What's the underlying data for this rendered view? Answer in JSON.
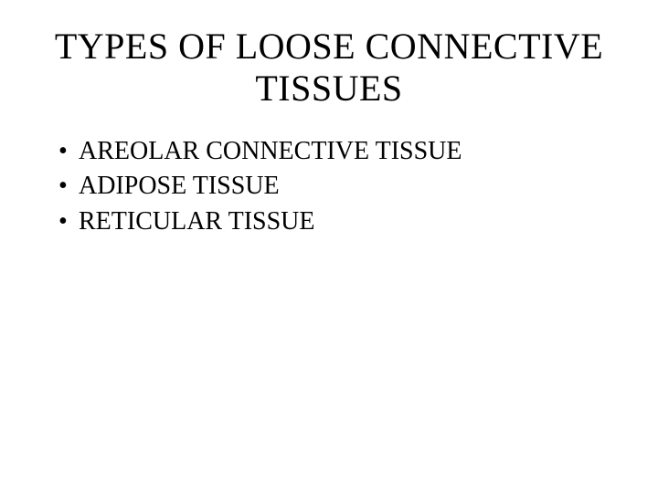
{
  "slide": {
    "title": "TYPES OF LOOSE CONNECTIVE TISSUES",
    "bullets": [
      "AREOLAR CONNECTIVE TISSUE",
      "ADIPOSE TISSUE",
      "RETICULAR TISSUE"
    ],
    "background_color": "#ffffff",
    "text_color": "#000000",
    "font_family": "Times New Roman",
    "title_fontsize": 40,
    "bullet_fontsize": 28
  }
}
